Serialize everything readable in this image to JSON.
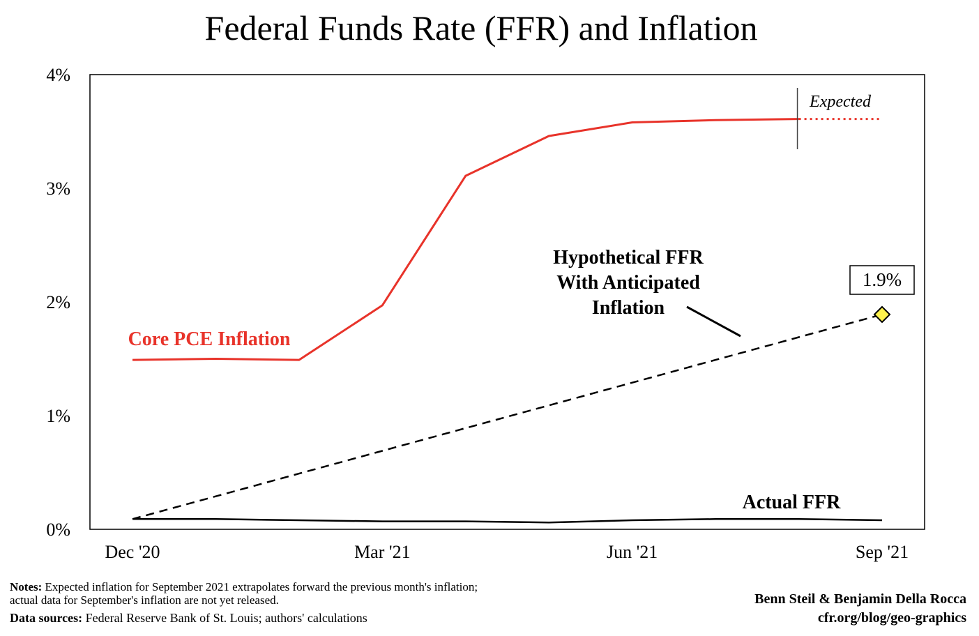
{
  "chart_data": {
    "type": "line",
    "title": "Federal Funds Rate (FFR) and Inflation",
    "xlabel": "",
    "ylabel": "",
    "x": [
      "Dec '20",
      "Jan '21",
      "Feb '21",
      "Mar '21",
      "Apr '21",
      "May '21",
      "Jun '21",
      "Jul '21",
      "Aug '21",
      "Sep '21"
    ],
    "x_tick_labels": [
      "Dec '20",
      "Mar '21",
      "Jun '21",
      "Sep '21"
    ],
    "y_tick_labels": [
      "0%",
      "1%",
      "2%",
      "3%",
      "4%"
    ],
    "ylim": [
      0,
      4
    ],
    "grid": false,
    "series": [
      {
        "name": "Core PCE Inflation",
        "color": "#e8332a",
        "style": "solid",
        "values": [
          1.49,
          1.5,
          1.49,
          1.97,
          3.11,
          3.46,
          3.58,
          3.6,
          3.61,
          null
        ]
      },
      {
        "name": "Core PCE Inflation",
        "color": "#e8332a",
        "style": "dotted",
        "values": [
          null,
          null,
          null,
          null,
          null,
          null,
          null,
          null,
          3.61,
          3.61
        ]
      },
      {
        "name": "Hypothetical FFR With Anticipated Inflation",
        "color": "#000000",
        "style": "dashed",
        "values": [
          0.09,
          0.29,
          0.49,
          0.69,
          0.89,
          1.09,
          1.29,
          1.49,
          1.69,
          1.89
        ]
      },
      {
        "name": "Actual FFR",
        "color": "#000000",
        "style": "solid",
        "values": [
          0.09,
          0.09,
          0.08,
          0.07,
          0.07,
          0.06,
          0.08,
          0.09,
          0.09,
          0.08
        ]
      }
    ],
    "annotations": {
      "expected_label": "Expected",
      "hypothetical_label_lines": [
        "Hypothetical FFR",
        "With Anticipated",
        "Inflation"
      ],
      "endpoint_value_label": "1.9%",
      "endpoint_marker_color": "#fff34d"
    }
  },
  "footer": {
    "notes_label": "Notes:",
    "notes_line1": " Expected inflation for September 2021 extrapolates forward the previous month's inflation;",
    "notes_line2": "actual data for September's inflation are not yet released.",
    "sources_label": "Data sources:",
    "sources_text": " Federal Reserve Bank of St. Louis; authors' calculations",
    "credit_authors": "Benn Steil & Benjamin Della Rocca",
    "credit_site": "cfr.org/blog/geo-graphics"
  }
}
